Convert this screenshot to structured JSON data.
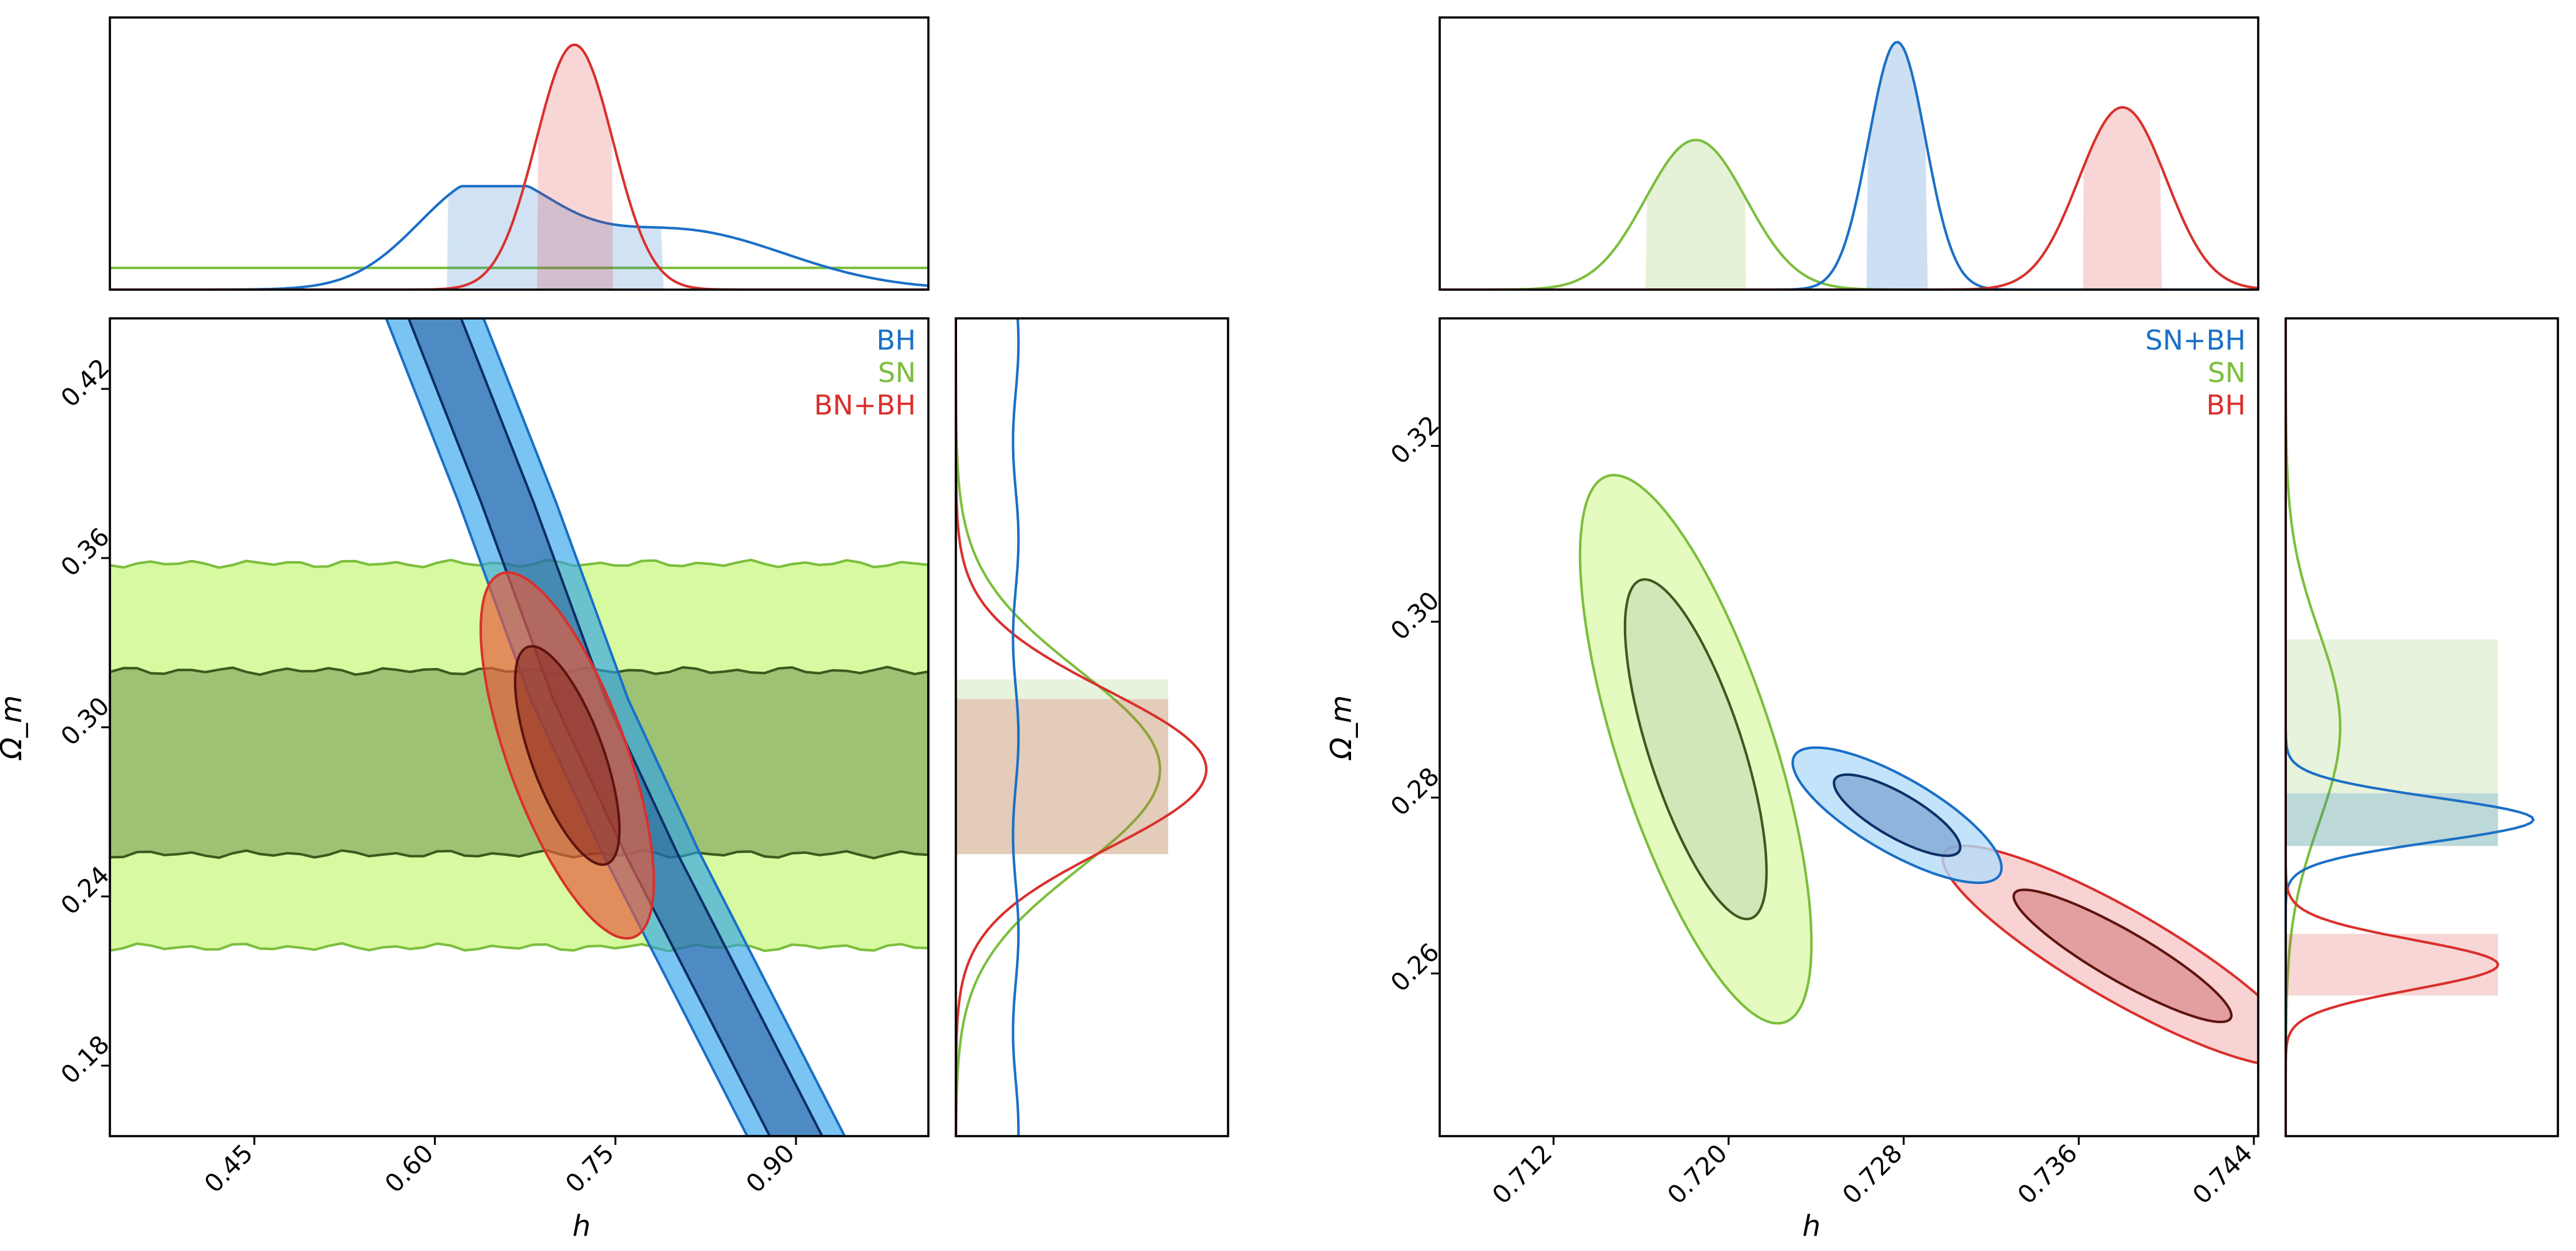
{
  "figure": {
    "colors": {
      "blue": "#1a6fc6",
      "green": "#7bbe3c",
      "red": "#d9302c"
    }
  },
  "chart_data": [
    {
      "type": "corner-contour",
      "panel": "left",
      "xlabel": "h",
      "ylabel": "Ω_m",
      "xlim": [
        0.33,
        1.01
      ],
      "ylim": [
        0.155,
        0.445
      ],
      "xticks": [
        "0.45",
        "0.60",
        "0.75",
        "0.90"
      ],
      "yticks": [
        "0.18",
        "0.24",
        "0.30",
        "0.36",
        "0.42"
      ],
      "legend": {
        "position": "top-right",
        "entries": [
          "BH",
          "SN",
          "BN+BH"
        ]
      },
      "series": [
        {
          "name": "BH",
          "color": "#1a6fc6",
          "contour": "narrow degeneracy band, Omega_m decreasing with h",
          "band_center": {
            "h": [
              0.6,
              0.66,
              0.72,
              0.78,
              0.84,
              0.9
            ],
            "omega_m": [
              0.445,
              0.38,
              0.31,
              0.255,
              0.205,
              0.155
            ]
          },
          "h_marginal": {
            "peak": 0.64,
            "range_68": [
              0.61,
              0.79
            ]
          },
          "omega_m_marginal": "flat across range"
        },
        {
          "name": "SN",
          "color": "#7bbe3c",
          "contour": "horizontal band",
          "omega_m_68": [
            0.255,
            0.32
          ],
          "omega_m_95": [
            0.222,
            0.358
          ],
          "h_marginal": "flat across range",
          "omega_m_marginal": {
            "peak": 0.285,
            "range_68": [
              0.255,
              0.317
            ]
          }
        },
        {
          "name": "BN+BH",
          "color": "#d9302c",
          "contour": "tilted ellipse",
          "center": {
            "h": 0.71,
            "omega_m": 0.29
          },
          "omega_m_68": [
            0.255,
            0.325
          ],
          "omega_m_95": [
            0.225,
            0.35
          ],
          "h_marginal": {
            "peak": 0.716,
            "range_68": [
              0.685,
              0.748
            ]
          },
          "omega_m_marginal": {
            "peak": 0.285,
            "range_68": [
              0.255,
              0.31
            ]
          }
        }
      ]
    },
    {
      "type": "corner-contour",
      "panel": "right",
      "xlabel": "h",
      "ylabel": "Ω_m",
      "xlim": [
        0.7068,
        0.7442
      ],
      "ylim": [
        0.2415,
        0.3345
      ],
      "xticks": [
        "0.712",
        "0.720",
        "0.728",
        "0.736",
        "0.744"
      ],
      "yticks": [
        "0.26",
        "0.28",
        "0.30",
        "0.32"
      ],
      "legend": {
        "position": "top-right",
        "entries": [
          "SN+BH",
          "SN",
          "BH"
        ]
      },
      "series": [
        {
          "name": "SN+BH",
          "color": "#1a6fc6",
          "contour": "small tilted ellipse",
          "center": {
            "h": 0.7277,
            "omega_m": 0.278
          },
          "h_marginal": {
            "peak": 0.7277,
            "range_68": [
              0.7263,
              0.7291
            ]
          },
          "omega_m_marginal": {
            "peak": 0.2775,
            "range_68": [
              0.2745,
              0.2805
            ]
          }
        },
        {
          "name": "SN",
          "color": "#7bbe3c",
          "contour": "large tilted ellipse",
          "center": {
            "h": 0.7185,
            "omega_m": 0.2855
          },
          "h_marginal": {
            "peak": 0.7185,
            "range_68": [
              0.7162,
              0.7208
            ]
          },
          "omega_m_marginal": {
            "peak": 0.288,
            "range_68": [
              0.2745,
              0.298
            ]
          }
        },
        {
          "name": "BH",
          "color": "#d9302c",
          "contour": "elongated tilted ellipse",
          "center": {
            "h": 0.738,
            "omega_m": 0.262
          },
          "h_marginal": {
            "peak": 0.738,
            "range_68": [
              0.7362,
              0.7398
            ]
          },
          "omega_m_marginal": {
            "peak": 0.261,
            "range_68": [
              0.2575,
              0.2645
            ]
          }
        }
      ]
    }
  ]
}
